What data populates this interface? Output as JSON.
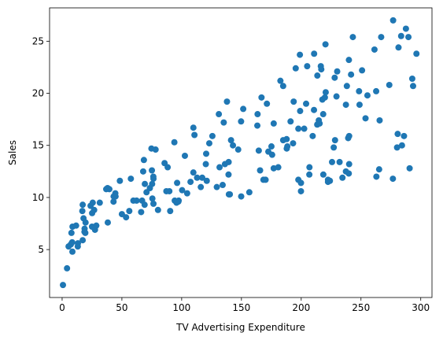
{
  "chart_data": {
    "type": "scatter",
    "xlabel": "TV Advertising Expenditure",
    "ylabel": "Sales",
    "color": "#1f77b4",
    "xlim": [
      -10.5,
      309.4
    ],
    "ylim": [
      0.4,
      28.2
    ],
    "xticks": [
      0,
      50,
      100,
      150,
      200,
      250,
      300
    ],
    "yticks": [
      5,
      10,
      15,
      20,
      25
    ],
    "x": [
      230.1,
      44.5,
      17.2,
      151.5,
      180.8,
      8.7,
      57.5,
      120.2,
      8.6,
      199.8,
      66.1,
      214.7,
      23.8,
      97.5,
      204.1,
      195.4,
      67.8,
      281.4,
      69.2,
      147.3,
      218.4,
      237.4,
      13.2,
      228.3,
      62.3,
      262.9,
      142.9,
      240.1,
      248.8,
      70.6,
      292.9,
      112.9,
      97.2,
      265.6,
      95.7,
      290.7,
      266.9,
      74.7,
      43.1,
      228,
      202.5,
      177,
      293.6,
      206.9,
      25.1,
      175.1,
      89.7,
      239.9,
      227.2,
      66.9,
      199.8,
      100.4,
      216.4,
      182.6,
      262.7,
      198.9,
      7.3,
      136.2,
      210.8,
      210.7,
      53.5,
      261.3,
      239.3,
      102.7,
      131.1,
      69,
      31.5,
      139.3,
      237.4,
      216.8,
      199.1,
      109.8,
      26.8,
      129.4,
      213.4,
      16.9,
      27.5,
      120.5,
      5.4,
      116,
      76.4,
      239.8,
      75.3,
      68.4,
      213.5,
      193.2,
      76.3,
      110.7,
      88.3,
      109.8,
      134.3,
      28.6,
      217.7,
      250.9,
      107.4,
      163.3,
      197.6,
      184.9,
      289.7,
      135.2,
      222.4,
      296.4,
      280.2,
      187.9,
      238.2,
      137.9,
      25,
      90.4,
      13.1,
      255.4,
      225.8,
      241.7,
      175.7,
      209.6,
      78.2,
      75.1,
      139.2,
      76.4,
      125.7,
      19.4,
      141.3,
      18.8,
      224,
      123.1,
      229.5,
      87.2,
      7.8,
      80.2,
      220.3,
      59.6,
      0.7,
      265.2,
      8.4,
      219.8,
      36.9,
      48.3,
      25.6,
      273.7,
      43,
      184.9,
      73.4,
      193.7,
      220.5,
      104.6,
      96.2,
      140.3,
      240.1,
      243.2,
      38,
      44.7,
      280.7,
      121,
      197.6,
      171.3,
      187.8,
      4.1,
      93.9,
      149.8,
      11.7,
      131.7,
      172.5,
      85.7,
      188.4,
      163.5,
      117.2,
      234.5,
      17.9,
      206.8,
      215.4,
      284.3,
      50,
      164.5,
      19.6,
      168.4,
      222.4,
      276.9,
      248.4,
      170.2,
      276.7,
      165.6,
      156.6,
      218.5,
      56.2,
      287.6,
      253.8,
      205,
      139.5,
      191.1,
      286,
      18.7,
      39.5,
      75.5,
      17.2,
      166.8,
      149.7,
      38.2,
      94.2,
      177,
      283.6,
      232.1
    ],
    "values": [
      22.1,
      10.4,
      9.3,
      18.5,
      12.9,
      7.2,
      11.8,
      13.2,
      4.8,
      10.6,
      8.6,
      17.4,
      9.2,
      9.7,
      19,
      22.4,
      12.5,
      24.4,
      11.3,
      14.6,
      18,
      12.5,
      5.6,
      15.5,
      9.7,
      12,
      15,
      15.9,
      18.9,
      10.5,
      21.4,
      11.9,
      9.6,
      17.4,
      9.5,
      12.8,
      25.4,
      14.7,
      10.1,
      21.5,
      16.6,
      17.1,
      20.7,
      12.9,
      8.5,
      14.9,
      10.6,
      23.2,
      14.8,
      9.7,
      11.4,
      10.7,
      22.6,
      21.2,
      20.2,
      23.7,
      5.5,
      13.2,
      23.8,
      18.4,
      8.1,
      24.2,
      15.7,
      14,
      18,
      9.3,
      9.5,
      13.4,
      18.9,
      22.3,
      18.3,
      12.4,
      8.8,
      11,
      17,
      8.7,
      6.9,
      14.2,
      5.3,
      11,
      11.8,
      12.3,
      11.3,
      13.6,
      21.7,
      15.2,
      12,
      16,
      12.9,
      16.7,
      11.2,
      7.3,
      19.4,
      22.2,
      11.5,
      16.9,
      11.7,
      15.5,
      25.4,
      17.2,
      11.7,
      23.8,
      14.8,
      14.7,
      20.7,
      19.2,
      7.2,
      8.7,
      5.3,
      19.8,
      13.4,
      21.8,
      14.1,
      15.9,
      14.6,
      12.6,
      12.2,
      9.4,
      15.9,
      6.6,
      15.5,
      7,
      11.6,
      15.2,
      19.7,
      10.6,
      6.6,
      8.8,
      24.7,
      9.7,
      1.6,
      12.7,
      5.7,
      19.6,
      10.8,
      11.6,
      9.5,
      20.8,
      9.6,
      20.7,
      10.9,
      19.2,
      20.1,
      10.4,
      11.4,
      10.3,
      13.2,
      25.4,
      10.9,
      10.1,
      16.1,
      11.6,
      16.6,
      19,
      15.6,
      3.2,
      15.3,
      10.1,
      7.3,
      12.9,
      14.4,
      13.3,
      14.9,
      18,
      11.9,
      11.9,
      8,
      12.2,
      17.1,
      15,
      8.4,
      14.5,
      7.6,
      11.7,
      11.5,
      27,
      20.2,
      11.7,
      11.8,
      12.6,
      10.5,
      12.2,
      8.7,
      26.2,
      17.6,
      22.6,
      10.3,
      17.3,
      15.9,
      6.7,
      10.8,
      9.9,
      5.9,
      19.6,
      17.3,
      7.6,
      9.7,
      12.8,
      25.5,
      13.4
    ]
  }
}
